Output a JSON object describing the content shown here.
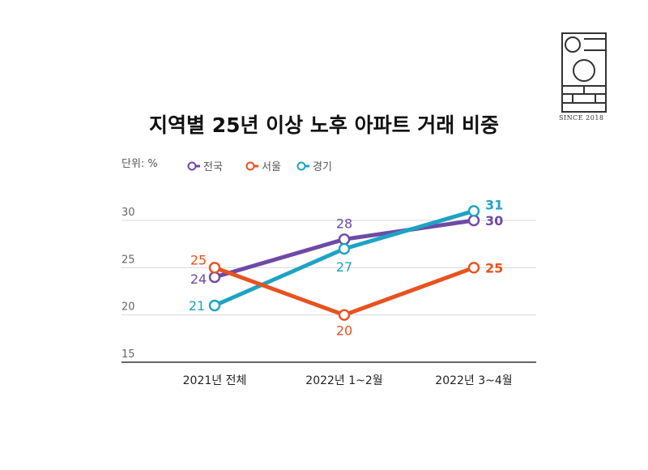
{
  "brand": {
    "caption": "SINCE 2018"
  },
  "chart_data": {
    "type": "line",
    "title": "지역별 25년 이상 노후 아파트 거래 비중",
    "unit_label": "단위: %",
    "categories": [
      "2021년 전체",
      "2022년 1~2월",
      "2022년 3~4월"
    ],
    "y_ticks": [
      15,
      20,
      25,
      30
    ],
    "ylim": [
      15,
      31
    ],
    "grid": true,
    "legend_position": "top-left",
    "series": [
      {
        "name": "전국",
        "color": "#6e4aa6",
        "values": [
          24,
          28,
          30
        ]
      },
      {
        "name": "서울",
        "color": "#e8521f",
        "values": [
          25,
          20,
          25
        ]
      },
      {
        "name": "경기",
        "color": "#1ea3c3",
        "values": [
          21,
          27,
          31
        ]
      }
    ]
  }
}
